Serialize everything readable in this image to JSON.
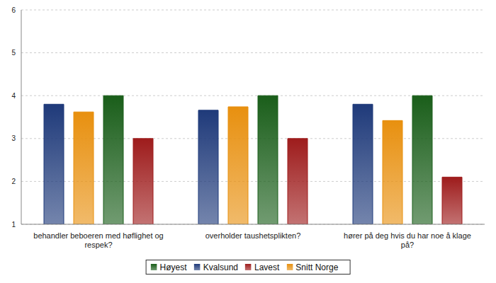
{
  "chart_data": {
    "type": "bar",
    "categories": [
      "behandler beboeren med høflighet og respek?",
      "overholder taushetsplikten?",
      "hører på deg hvis du har noe å klage på?"
    ],
    "series": [
      {
        "name": "Kvalsund",
        "color": "#1f3a7a",
        "values": [
          3.8,
          3.66,
          3.8
        ]
      },
      {
        "name": "Snitt Norge",
        "color": "#e8900f",
        "values": [
          3.62,
          3.74,
          3.42
        ]
      },
      {
        "name": "Høyest",
        "color": "#1a5e1a",
        "values": [
          4,
          4,
          4
        ]
      },
      {
        "name": "Lavest",
        "color": "#9e1c1c",
        "values": [
          3,
          3,
          2.1
        ]
      }
    ],
    "ylim": [
      1,
      6
    ],
    "yticks": [
      1,
      2,
      3,
      4,
      5,
      6
    ],
    "grid": true,
    "legend": "bottom"
  }
}
